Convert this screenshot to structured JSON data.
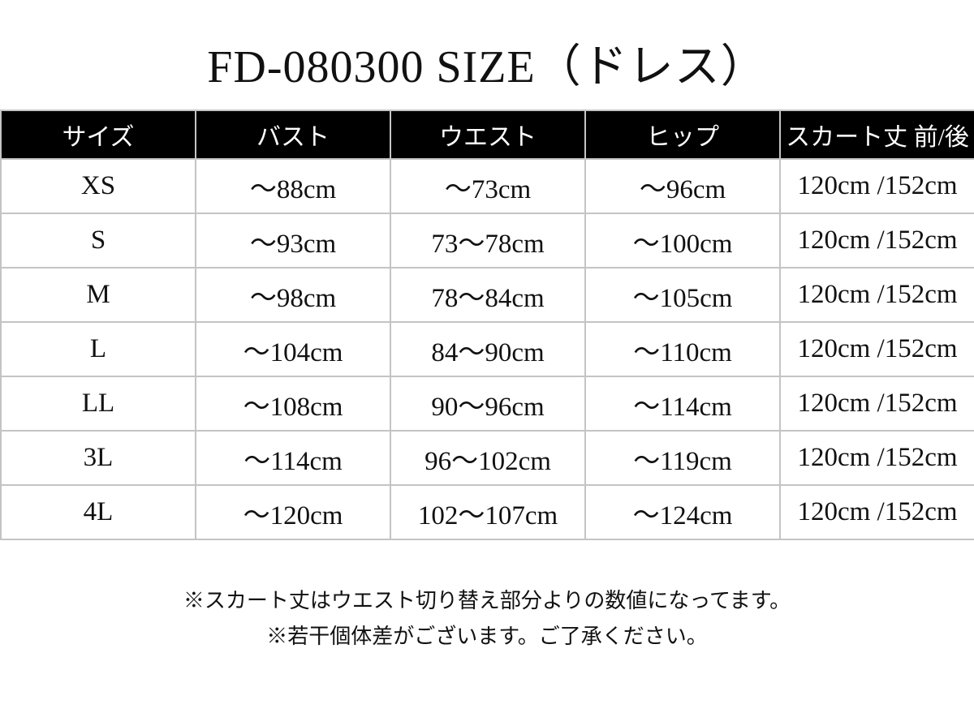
{
  "title": "FD-080300 SIZE（ドレス）",
  "colors": {
    "header_bg": "#000000",
    "header_text": "#ffffff",
    "border": "#c4c4c4",
    "body_text": "#111111",
    "page_bg": "#ffffff"
  },
  "chart_data": {
    "type": "table",
    "title": "FD-080300 SIZE（ドレス）",
    "columns": [
      "サイズ",
      "バスト",
      "ウエスト",
      "ヒップ",
      "スカート丈 前/後"
    ],
    "rows": [
      [
        "XS",
        "～88cm",
        "～73cm",
        "～96cm",
        "120cm /152cm"
      ],
      [
        "S",
        "～93cm",
        "73～78cm",
        "～100cm",
        "120cm /152cm"
      ],
      [
        "M",
        "～98cm",
        "78～84cm",
        "～105cm",
        "120cm /152cm"
      ],
      [
        "L",
        "～104cm",
        "84～90cm",
        "～110cm",
        "120cm /152cm"
      ],
      [
        "LL",
        "～108cm",
        "90～96cm",
        "～114cm",
        "120cm /152cm"
      ],
      [
        "3L",
        "～114cm",
        "96～102cm",
        "～119cm",
        "120cm /152cm"
      ],
      [
        "4L",
        "～120cm",
        "102～107cm",
        "～124cm",
        "120cm /152cm"
      ]
    ]
  },
  "notes": [
    "※スカート丈はウエスト切り替え部分よりの数値になってます。",
    "※若干個体差がございます。ご了承ください。"
  ]
}
